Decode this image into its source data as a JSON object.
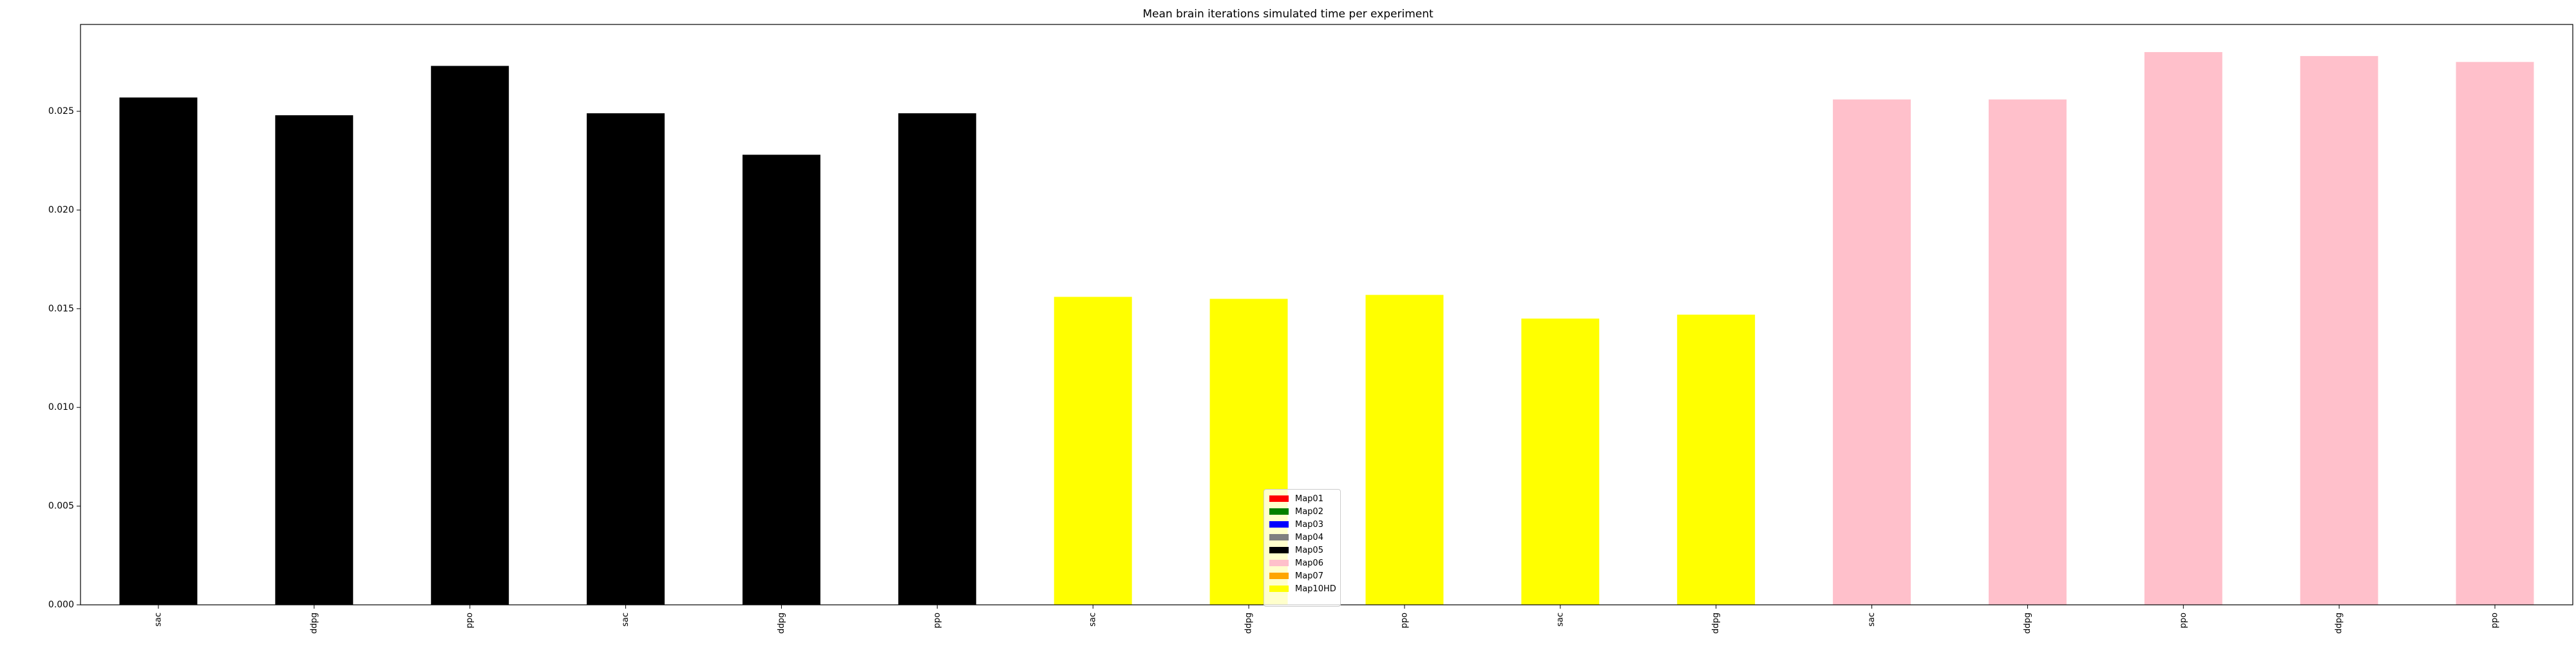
{
  "chart_data": {
    "type": "bar",
    "title": "Mean brain iterations simulated time per experiment",
    "xlabel": "",
    "ylabel": "",
    "ylim": [
      0,
      0.0294
    ],
    "yticks": [
      "0.000",
      "0.005",
      "0.010",
      "0.015",
      "0.020",
      "0.025"
    ],
    "ytick_values": [
      0,
      0.005,
      0.01,
      0.015,
      0.02,
      0.025
    ],
    "grid": false,
    "legend_position": "bottom-center",
    "categories": [
      "sac",
      "ddpg",
      "ppo",
      "sac",
      "ddpg",
      "ppo",
      "sac",
      "ddpg",
      "ppo",
      "sac",
      "ddpg",
      "sac",
      "ddpg",
      "ppo",
      "ddpg",
      "ppo"
    ],
    "values": [
      0.0257,
      0.0248,
      0.0273,
      0.0249,
      0.0228,
      0.0249,
      0.0156,
      0.0155,
      0.0157,
      0.0145,
      0.0147,
      0.0256,
      0.0256,
      0.028,
      0.0278,
      0.0275
    ],
    "bar_colors": [
      "#000000",
      "#000000",
      "#000000",
      "#000000",
      "#000000",
      "#000000",
      "#ffff00",
      "#ffff00",
      "#ffff00",
      "#ffff00",
      "#ffff00",
      "#ffc0cb",
      "#ffc0cb",
      "#ffc0cb",
      "#ffc0cb",
      "#ffc0cb"
    ],
    "legend": [
      {
        "name": "Map01",
        "color": "#ff0000"
      },
      {
        "name": "Map02",
        "color": "#008000"
      },
      {
        "name": "Map03",
        "color": "#0000ff"
      },
      {
        "name": "Map04",
        "color": "#808080"
      },
      {
        "name": "Map05",
        "color": "#000000"
      },
      {
        "name": "Map06",
        "color": "#ffc0cb"
      },
      {
        "name": "Map07",
        "color": "#ffa500"
      },
      {
        "name": "Map10HD",
        "color": "#ffff00"
      }
    ]
  }
}
